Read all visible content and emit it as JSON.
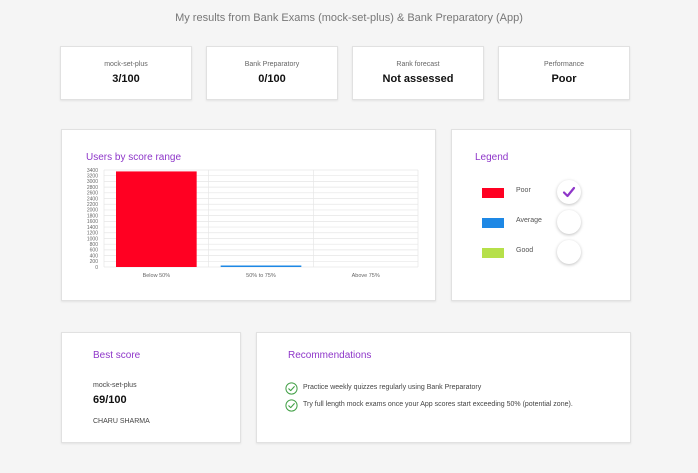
{
  "page": {
    "title": "My results from Bank Exams (mock-set-plus) & Bank Preparatory (App)"
  },
  "stats": [
    {
      "label": "mock-set-plus",
      "value": "3/100"
    },
    {
      "label": "Bank Preparatory",
      "value": "0/100"
    },
    {
      "label": "Rank forecast",
      "value": "Not assessed"
    },
    {
      "label": "Performance",
      "value": "Poor"
    }
  ],
  "chart": {
    "title": "Users by score range"
  },
  "chart_data": {
    "type": "bar",
    "title": "Users by score range",
    "categories": [
      "Below 50%",
      "50% to 75%",
      "Above 75%"
    ],
    "values": [
      3350,
      40,
      0
    ],
    "colors": [
      "#ff0022",
      "#1e88e5",
      "#b6e04a"
    ],
    "ylim": [
      0,
      3400
    ],
    "yticks": [
      0,
      200,
      400,
      600,
      800,
      1000,
      1200,
      1400,
      1600,
      1800,
      2000,
      2200,
      2400,
      2600,
      2800,
      3000,
      3200,
      3400
    ],
    "grid": true,
    "xlabel": "",
    "ylabel": ""
  },
  "legend": {
    "title": "Legend",
    "items": [
      {
        "label": "Poor",
        "color": "#ff0022",
        "checked": true
      },
      {
        "label": "Average",
        "color": "#1e88e5",
        "checked": false
      },
      {
        "label": "Good",
        "color": "#b6e04a",
        "checked": false
      }
    ]
  },
  "best_score": {
    "title": "Best score",
    "source": "mock-set-plus",
    "value": "69/100",
    "name": "CHARU SHARMA"
  },
  "recommendations": {
    "title": "Recommendations",
    "items": [
      "Practice weekly quizzes regularly using Bank Preparatory",
      "Try full length mock exams once your App scores start exceeding 50% (potential zone)."
    ],
    "icon_color": "#43a047"
  }
}
